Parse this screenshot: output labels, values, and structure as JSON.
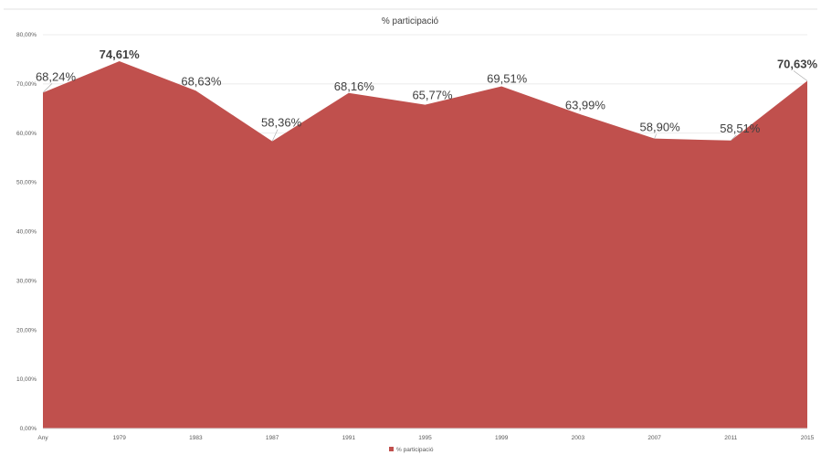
{
  "chart_data": {
    "type": "area",
    "title": "% participació",
    "categories": [
      "Any",
      "1979",
      "1983",
      "1987",
      "1991",
      "1995",
      "1999",
      "2003",
      "2007",
      "2011",
      "2015"
    ],
    "series": [
      {
        "name": "% participació",
        "values": [
          68.24,
          74.61,
          68.63,
          58.36,
          68.16,
          65.77,
          69.51,
          63.99,
          58.9,
          58.51,
          70.63
        ],
        "labels": [
          "68,24%",
          "74,61%",
          "68,63%",
          "58,36%",
          "68,16%",
          "65,77%",
          "69,51%",
          "63,99%",
          "58,90%",
          "58,51%",
          "70,63%"
        ],
        "bold_labels": [
          false,
          true,
          false,
          false,
          false,
          false,
          false,
          false,
          false,
          false,
          true
        ],
        "color": "#c0504d"
      }
    ],
    "yticks": [
      "0,00%",
      "10,00%",
      "20,00%",
      "30,00%",
      "40,00%",
      "50,00%",
      "60,00%",
      "70,00%",
      "80,00%"
    ],
    "ylim": [
      0,
      80
    ],
    "grid": true,
    "legend": "bottom"
  }
}
